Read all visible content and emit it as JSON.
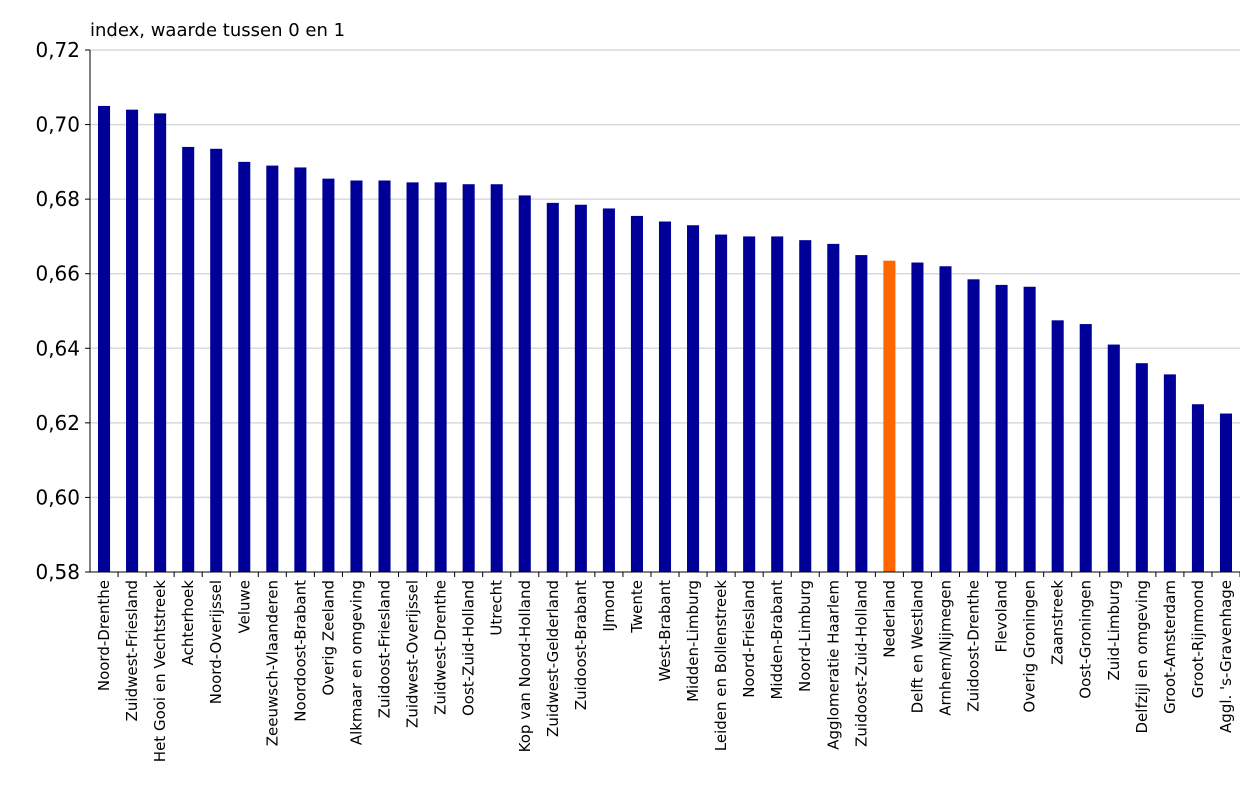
{
  "chart_data": {
    "type": "bar",
    "title": "",
    "unit_label": "index, waarde tussen 0 en 1",
    "xlabel": "",
    "ylabel": "",
    "ylim": [
      0.58,
      0.72
    ],
    "yticks": [
      "0,58",
      "0,60",
      "0,62",
      "0,64",
      "0,66",
      "0,68",
      "0,70",
      "0,72"
    ],
    "grid": true,
    "legend": "none",
    "bar_color": "#000099",
    "highlight_color": "#FF6600",
    "highlight_category": "Nederland",
    "categories": [
      "Noord-Drenthe",
      "Zuidwest-Friesland",
      "Het Gooi en Vechtstreek",
      "Achterhoek",
      "Noord-Overijssel",
      "Veluwe",
      "Zeeuwsch-Vlaanderen",
      "Noordoost-Brabant",
      "Overig Zeeland",
      "Alkmaar en omgeving",
      "Zuidoost-Friesland",
      "Zuidwest-Overijssel",
      "Zuidwest-Drenthe",
      "Oost-Zuid-Holland",
      "Utrecht",
      "Kop van Noord-Holland",
      "Zuidwest-Gelderland",
      "Zuidoost-Brabant",
      "IJmond",
      "Twente",
      "West-Brabant",
      "Midden-Limburg",
      "Leiden en Bollenstreek",
      "Noord-Friesland",
      "Midden-Brabant",
      "Noord-Limburg",
      "Agglomeratie Haarlem",
      "Zuidoost-Zuid-Holland",
      "Nederland",
      "Delft en Westland",
      "Arnhem/Nijmegen",
      "Zuidoost-Drenthe",
      "Flevoland",
      "Overig Groningen",
      "Zaanstreek",
      "Oost-Groningen",
      "Zuid-Limburg",
      "Delfzijl en omgeving",
      "Groot-Amsterdam",
      "Groot-Rijnmond",
      "Aggl. 's-Gravenhage"
    ],
    "values": [
      0.705,
      0.704,
      0.703,
      0.694,
      0.6935,
      0.69,
      0.689,
      0.6885,
      0.6855,
      0.685,
      0.685,
      0.6845,
      0.6845,
      0.684,
      0.684,
      0.681,
      0.679,
      0.6785,
      0.6775,
      0.6755,
      0.674,
      0.673,
      0.6705,
      0.67,
      0.67,
      0.669,
      0.668,
      0.665,
      0.6635,
      0.663,
      0.662,
      0.6585,
      0.657,
      0.6565,
      0.6475,
      0.6465,
      0.641,
      0.636,
      0.633,
      0.625,
      0.6225
    ]
  }
}
